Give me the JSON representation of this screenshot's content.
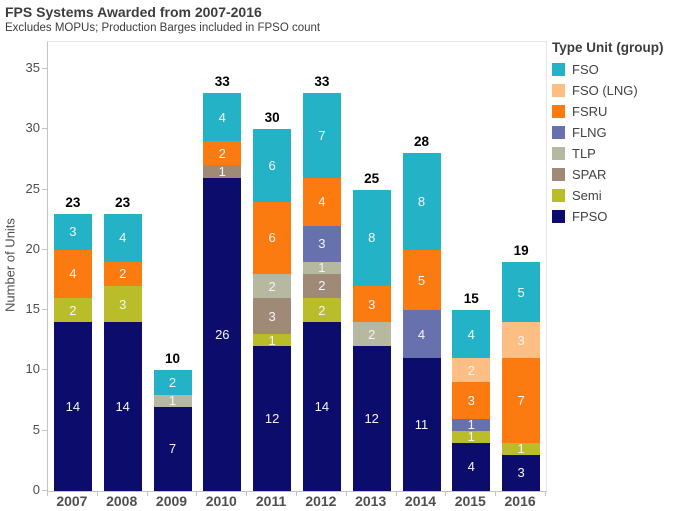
{
  "header": {
    "title": "FPS Systems Awarded from 2007-2016",
    "subtitle": "Excludes MOPUs; Production Barges included in FPSO count"
  },
  "y_axis": {
    "label": "Number of Units",
    "ticks": [
      0,
      5,
      10,
      15,
      20,
      25,
      30,
      35
    ]
  },
  "legend": {
    "title": "Type Unit (group)",
    "items": [
      {
        "label": "FSO",
        "color": "#24b2c6"
      },
      {
        "label": "FSO (LNG)",
        "color": "#fcbe82"
      },
      {
        "label": "FSRU",
        "color": "#fb7b10"
      },
      {
        "label": "FLNG",
        "color": "#6771ad"
      },
      {
        "label": "TLP",
        "color": "#b6b89f"
      },
      {
        "label": "SPAR",
        "color": "#9e8a77"
      },
      {
        "label": "Semi",
        "color": "#b9bd2a"
      },
      {
        "label": "FPSO",
        "color": "#0c0c6c"
      }
    ]
  },
  "chart_data": {
    "type": "bar",
    "stacked": true,
    "title": "FPS Systems Awarded from 2007-2016",
    "subtitle": "Excludes MOPUs; Production Barges included in FPSO count",
    "xlabel": "",
    "ylabel": "Number of Units",
    "ylim": [
      0,
      35
    ],
    "grid": false,
    "legend_position": "right",
    "categories": [
      "2007",
      "2008",
      "2009",
      "2010",
      "2011",
      "2012",
      "2013",
      "2014",
      "2015",
      "2016"
    ],
    "series": [
      {
        "name": "FPSO",
        "color": "#0c0c6c",
        "values": [
          14,
          14,
          7,
          26,
          12,
          14,
          12,
          11,
          4,
          3
        ]
      },
      {
        "name": "Semi",
        "color": "#b9bd2a",
        "values": [
          2,
          3,
          0,
          0,
          1,
          2,
          0,
          0,
          1,
          1
        ]
      },
      {
        "name": "SPAR",
        "color": "#9e8a77",
        "values": [
          0,
          0,
          0,
          1,
          3,
          2,
          0,
          0,
          0,
          0
        ]
      },
      {
        "name": "TLP",
        "color": "#b6b89f",
        "values": [
          0,
          0,
          1,
          0,
          2,
          1,
          2,
          0,
          0,
          0
        ]
      },
      {
        "name": "FLNG",
        "color": "#6771ad",
        "values": [
          0,
          0,
          0,
          0,
          0,
          3,
          0,
          4,
          1,
          0
        ]
      },
      {
        "name": "FSRU",
        "color": "#fb7b10",
        "values": [
          4,
          2,
          0,
          2,
          6,
          4,
          3,
          5,
          3,
          7
        ]
      },
      {
        "name": "FSO (LNG)",
        "color": "#fcbe82",
        "values": [
          0,
          0,
          0,
          0,
          0,
          0,
          0,
          0,
          2,
          3
        ]
      },
      {
        "name": "FSO",
        "color": "#24b2c6",
        "values": [
          3,
          4,
          2,
          4,
          6,
          7,
          8,
          8,
          4,
          5
        ]
      }
    ],
    "totals": [
      23,
      23,
      10,
      33,
      30,
      33,
      25,
      28,
      15,
      19
    ]
  }
}
